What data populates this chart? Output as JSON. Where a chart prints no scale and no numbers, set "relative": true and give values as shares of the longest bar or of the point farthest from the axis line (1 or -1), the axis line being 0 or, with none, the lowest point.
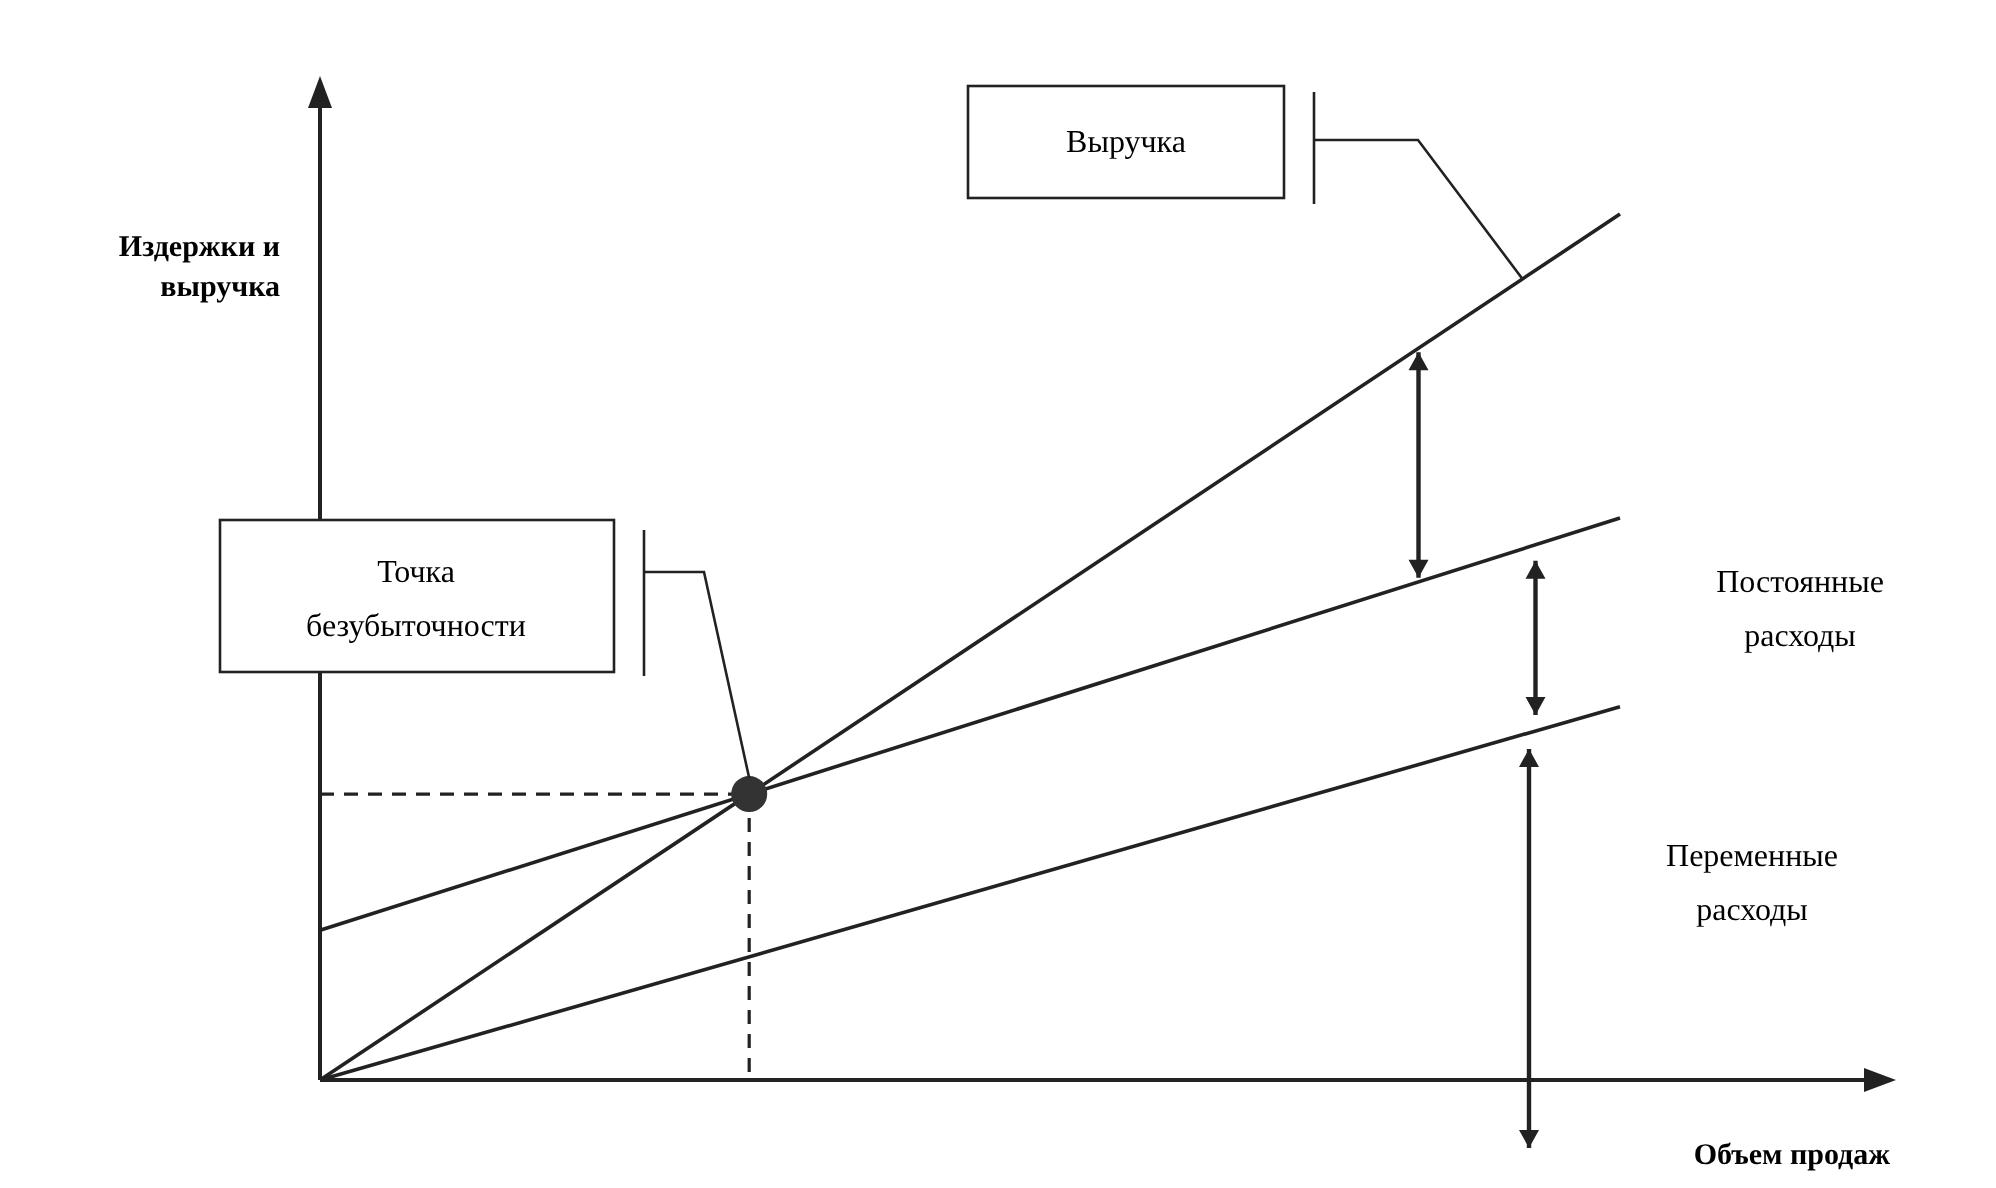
{
  "chart_data": {
    "type": "line",
    "relative": true,
    "xlabel": "Объем продаж",
    "ylabel": "Издержки и выручка",
    "categories": [
      null,
      null
    ],
    "line_style": "solid",
    "series": [
      {
        "name": "Выручка",
        "color": "#222222",
        "values": [
          0,
          1
        ]
      },
      {
        "color": "#222222",
        "values": [
          0.173,
          0.649
        ]
      },
      {
        "color": "#222222",
        "values": [
          0,
          0.431
        ]
      }
    ],
    "annotations": [
      "Точка безубыточности",
      "Постоянные расходы",
      "Переменные расходы"
    ]
  }
}
